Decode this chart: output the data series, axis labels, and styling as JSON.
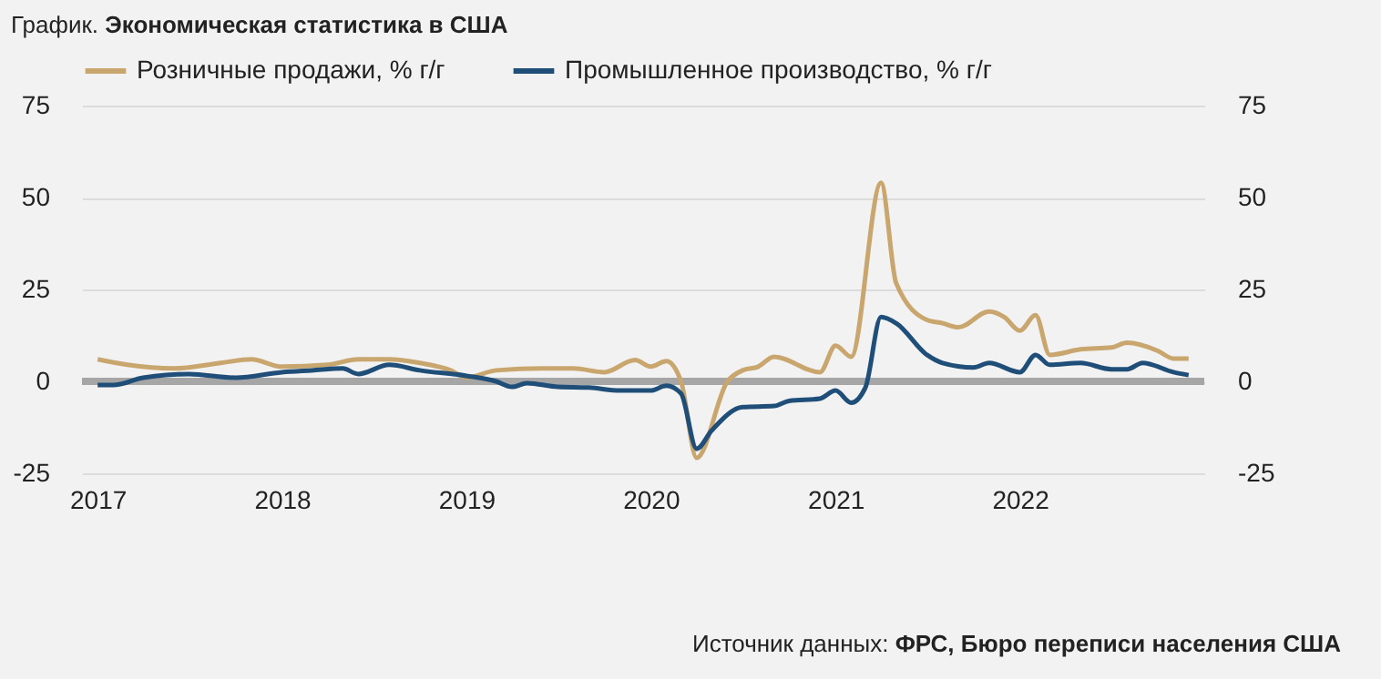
{
  "chart_data": {
    "type": "line",
    "title": "График. Экономическая статистика в США",
    "annotations": [
      "Источник данных: ФРС, Бюро переписи населения США"
    ],
    "xlim": [
      "2016-12",
      "2023-01"
    ],
    "xticks": [
      "2017",
      "2018",
      "2019",
      "2020",
      "2021",
      "2022"
    ],
    "ylim": [
      -25,
      75
    ],
    "yticks": [
      -25,
      0,
      25,
      50,
      75
    ],
    "y2lim": [
      -25,
      75
    ],
    "y2ticks": [
      -25,
      0,
      25,
      50,
      75
    ],
    "grid": "y",
    "legend": "top",
    "line_style": "solid",
    "ref_lines": [
      {
        "axis": "y",
        "value": 0,
        "color": "#a6a6a6"
      }
    ],
    "series": [
      {
        "name": "Розничные продажи, % г/г",
        "color": "#c9a66e",
        "x": [
          "2017-01",
          "2017-03",
          "2017-06",
          "2017-09",
          "2017-11",
          "2018-01",
          "2018-04",
          "2018-06",
          "2018-08",
          "2018-10",
          "2018-12",
          "2019-01",
          "2019-03",
          "2019-06",
          "2019-08",
          "2019-10",
          "2019-12",
          "2020-01",
          "2020-02",
          "2020-03",
          "2020-04",
          "2020-06",
          "2020-07",
          "2020-08",
          "2020-09",
          "2020-12",
          "2021-01",
          "2021-02",
          "2021-04",
          "2021-05",
          "2021-07",
          "2021-08",
          "2021-09",
          "2021-11",
          "2021-12",
          "2022-01",
          "2022-02",
          "2022-03",
          "2022-05",
          "2022-07",
          "2022-08",
          "2022-10",
          "2022-11",
          "2022-12"
        ],
        "values": [
          6,
          4.5,
          3.5,
          5,
          6,
          4,
          4.5,
          6,
          6,
          5,
          3,
          1,
          3,
          3.5,
          3.5,
          2.5,
          5.8,
          4,
          5.5,
          0,
          -20.8,
          0,
          3,
          4,
          6.7,
          2.5,
          9.7,
          6.7,
          54,
          26.7,
          16.7,
          15.8,
          14.7,
          19,
          17.5,
          13.8,
          18,
          7.2,
          8.7,
          9.2,
          10.5,
          8.3,
          6.2,
          6.2
        ]
      },
      {
        "name": "Промышленное производство, % г/г",
        "color": "#1f4e79",
        "x": [
          "2017-01",
          "2017-02",
          "2017-04",
          "2017-07",
          "2017-10",
          "2018-01",
          "2018-03",
          "2018-05",
          "2018-06",
          "2018-08",
          "2018-10",
          "2019-01",
          "2019-03",
          "2019-04",
          "2019-05",
          "2019-07",
          "2019-09",
          "2019-11",
          "2020-01",
          "2020-02",
          "2020-03",
          "2020-04",
          "2020-05",
          "2020-07",
          "2020-09",
          "2020-10",
          "2020-12",
          "2021-01",
          "2021-02",
          "2021-03",
          "2021-04",
          "2021-05",
          "2021-07",
          "2021-08",
          "2021-10",
          "2021-11",
          "2022-01",
          "2022-02",
          "2022-03",
          "2022-05",
          "2022-07",
          "2022-08",
          "2022-09",
          "2022-11",
          "2022-12"
        ],
        "values": [
          -1,
          -1,
          1,
          2,
          1,
          2.5,
          3,
          3.5,
          2,
          4.5,
          3,
          1.5,
          0,
          -1.5,
          -0.5,
          -1.5,
          -1.7,
          -2.5,
          -2.5,
          -1.2,
          -3.3,
          -18.3,
          -13.3,
          -7,
          -6.7,
          -5.3,
          -4.7,
          -2.5,
          -5.8,
          -1.7,
          17.5,
          15.8,
          7.2,
          5,
          3.8,
          5,
          2.5,
          7.2,
          4.5,
          5,
          3.3,
          3.3,
          5,
          2.5,
          1.7
        ]
      }
    ]
  }
}
